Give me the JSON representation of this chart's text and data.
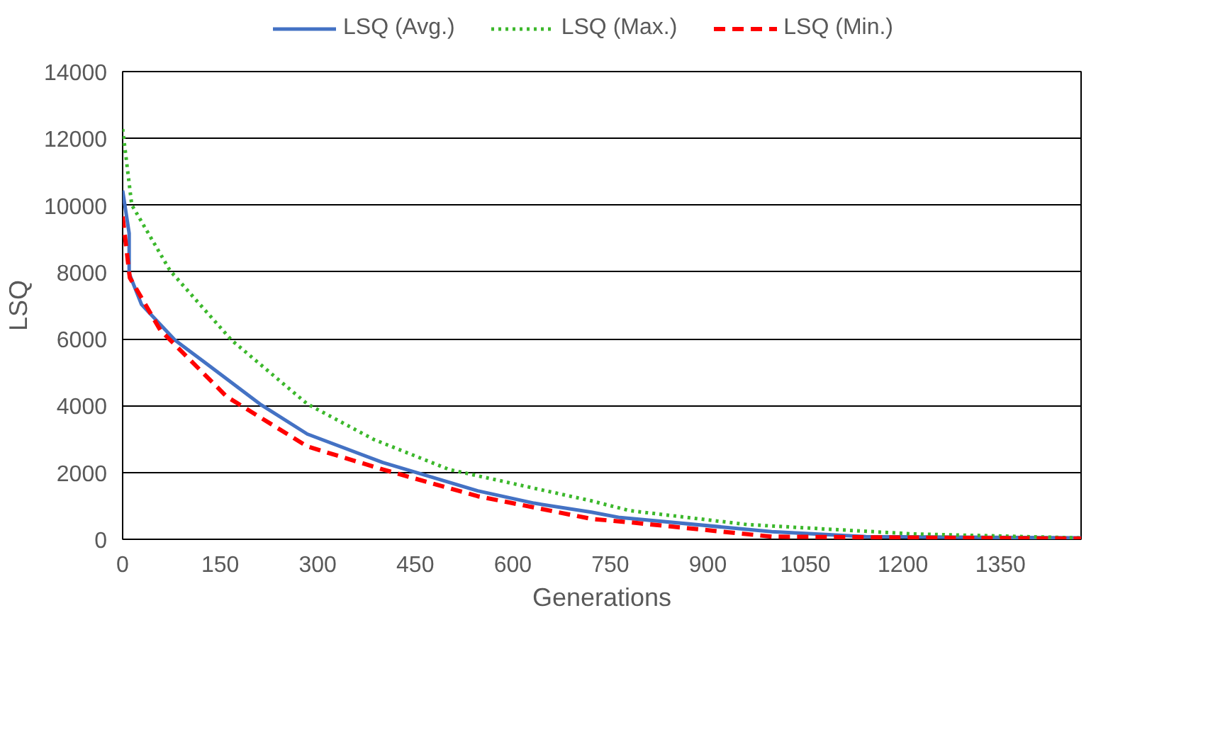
{
  "chart_data": {
    "type": "line",
    "xlabel": "Generations",
    "ylabel": "LSQ",
    "xlim": [
      0,
      1474
    ],
    "ylim": [
      0,
      14000
    ],
    "xticks": [
      0,
      150,
      300,
      450,
      600,
      750,
      900,
      1050,
      1200,
      1350
    ],
    "yticks": [
      0,
      2000,
      4000,
      6000,
      8000,
      10000,
      12000,
      14000
    ],
    "grid": "y",
    "legend": "top",
    "marker": "none",
    "series": [
      {
        "name": "LSQ (Avg.)",
        "color": "#4472c4",
        "line_style": "solid",
        "x": [
          0,
          10,
          10,
          29,
          80,
          150,
          211,
          284,
          400,
          546,
          633,
          721,
          765,
          998,
          1143,
          1474
        ],
        "values": [
          10440,
          9160,
          7960,
          7030,
          5970,
          4950,
          4050,
          3150,
          2300,
          1450,
          1080,
          810,
          650,
          230,
          80,
          40
        ]
      },
      {
        "name": "LSQ (Max.)",
        "color": "#3cb82c",
        "line_style": "dotted",
        "x": [
          0,
          14,
          73,
          167,
          284,
          386,
          502,
          721,
          779,
          961,
          1216,
          1474
        ],
        "values": [
          12280,
          10010,
          8040,
          5970,
          4050,
          2990,
          2090,
          1150,
          860,
          440,
          160,
          40
        ]
      },
      {
        "name": "LSQ (Min.)",
        "color": "#ff0000",
        "line_style": "dashed",
        "x": [
          0,
          11,
          58,
          160,
          284,
          400,
          546,
          721,
          779,
          998,
          1474
        ],
        "values": [
          9660,
          7830,
          6260,
          4270,
          2780,
          2090,
          1290,
          610,
          510,
          80,
          20
        ]
      }
    ]
  }
}
